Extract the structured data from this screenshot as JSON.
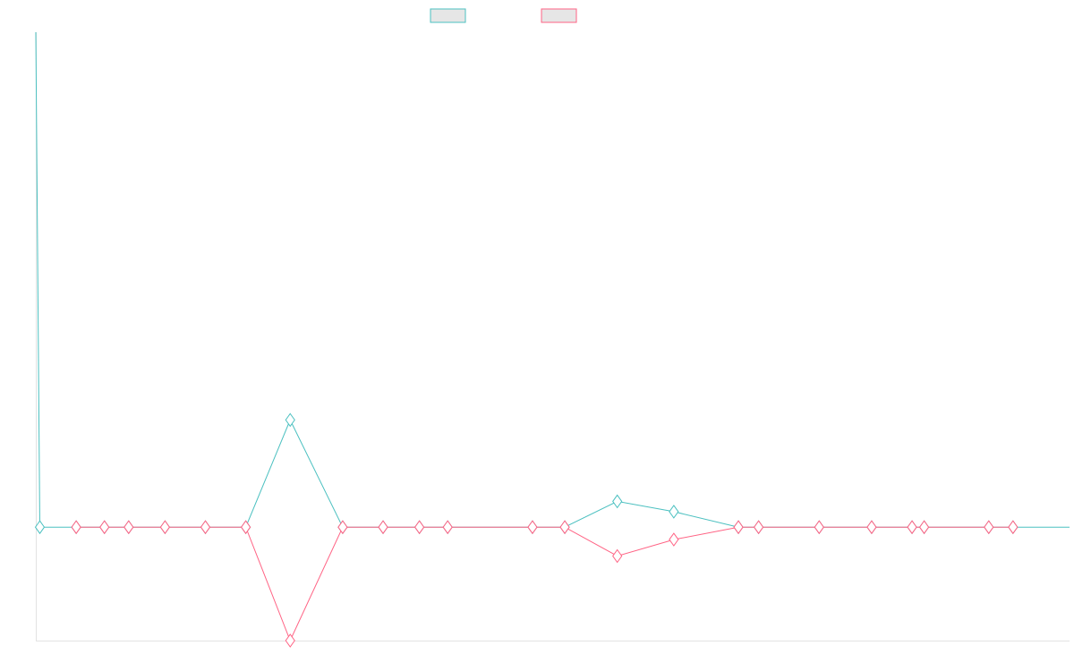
{
  "chart_data": {
    "type": "line",
    "title": "",
    "xlabel": "",
    "ylabel": "",
    "grid": false,
    "legend_position": "top-center",
    "marker": "diamond",
    "x_range": [
      0,
      128
    ],
    "ylim": [
      -11,
      48
    ],
    "series": [
      {
        "name": "",
        "color": "#4bc0c0",
        "values": [
          {
            "x": 0,
            "y": 48
          },
          {
            "x": 0.5,
            "y": 0
          },
          {
            "x": 5,
            "y": 0
          },
          {
            "x": 8.5,
            "y": 0
          },
          {
            "x": 11.5,
            "y": 0
          },
          {
            "x": 16,
            "y": 0
          },
          {
            "x": 21,
            "y": 0
          },
          {
            "x": 26,
            "y": 0
          },
          {
            "x": 31.5,
            "y": 10.4
          },
          {
            "x": 38,
            "y": 0
          },
          {
            "x": 43,
            "y": 0
          },
          {
            "x": 47.5,
            "y": 0
          },
          {
            "x": 51,
            "y": 0
          },
          {
            "x": 61.5,
            "y": 0
          },
          {
            "x": 65.5,
            "y": 0
          },
          {
            "x": 72,
            "y": 2.5
          },
          {
            "x": 79,
            "y": 1.5
          },
          {
            "x": 87,
            "y": 0
          },
          {
            "x": 89.5,
            "y": 0
          },
          {
            "x": 97,
            "y": 0
          },
          {
            "x": 103.5,
            "y": 0
          },
          {
            "x": 108.5,
            "y": 0
          },
          {
            "x": 110,
            "y": 0
          },
          {
            "x": 118,
            "y": 0
          },
          {
            "x": 121,
            "y": 0
          },
          {
            "x": 128,
            "y": 0
          }
        ]
      },
      {
        "name": "",
        "color": "#ff6384",
        "values": [
          {
            "x": 5,
            "y": 0
          },
          {
            "x": 8.5,
            "y": 0
          },
          {
            "x": 11.5,
            "y": 0
          },
          {
            "x": 16,
            "y": 0
          },
          {
            "x": 21,
            "y": 0
          },
          {
            "x": 26,
            "y": 0
          },
          {
            "x": 31.5,
            "y": -11
          },
          {
            "x": 38,
            "y": 0
          },
          {
            "x": 43,
            "y": 0
          },
          {
            "x": 47.5,
            "y": 0
          },
          {
            "x": 51,
            "y": 0
          },
          {
            "x": 61.5,
            "y": 0
          },
          {
            "x": 65.5,
            "y": 0
          },
          {
            "x": 72,
            "y": -2.8
          },
          {
            "x": 79,
            "y": -1.2
          },
          {
            "x": 87,
            "y": 0
          },
          {
            "x": 89.5,
            "y": 0
          },
          {
            "x": 97,
            "y": 0
          },
          {
            "x": 103.5,
            "y": 0
          },
          {
            "x": 108.5,
            "y": 0
          },
          {
            "x": 110,
            "y": 0
          },
          {
            "x": 118,
            "y": 0
          },
          {
            "x": 121,
            "y": 0
          }
        ]
      }
    ]
  }
}
